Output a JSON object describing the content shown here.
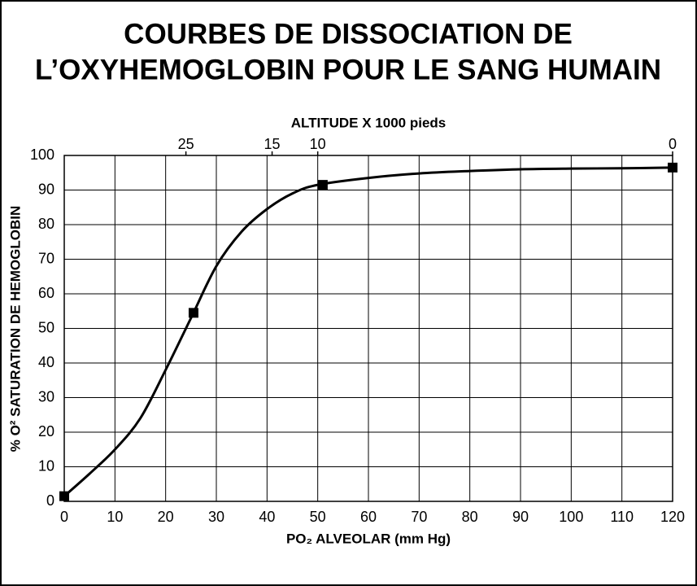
{
  "chart_data": {
    "type": "line",
    "title": [
      "COURBES DE DISSOCIATION DE",
      "L’OXYHEMOGLOBIN POUR LE SANG HUMAIN"
    ],
    "x_label": "PO₂ ALVEOLAR (mm Hg)",
    "y_label": "% O² SATURATION DE HEMOGLOBIN",
    "top_axis": {
      "label": "ALTITUDE X 1000 pieds",
      "ticks": [
        25,
        15,
        10,
        0
      ],
      "at_x": [
        24,
        41,
        50,
        120
      ]
    },
    "curve": {
      "x": [
        0,
        5,
        10,
        15,
        20,
        25,
        30,
        35,
        40,
        45,
        50,
        60,
        70,
        80,
        90,
        100,
        110,
        120
      ],
      "y": [
        1.5,
        8,
        15,
        24,
        38,
        53,
        68,
        78,
        84.5,
        89,
        91.5,
        93.5,
        94.8,
        95.5,
        96,
        96.2,
        96.3,
        96.5
      ],
      "color": "#000000"
    },
    "markers": {
      "x": [
        0,
        25.5,
        51,
        120
      ],
      "y": [
        1.5,
        54.5,
        91.5,
        96.5
      ],
      "color": "#000000"
    },
    "xlim": [
      0,
      120
    ],
    "xticks": [
      0,
      10,
      20,
      30,
      40,
      50,
      60,
      70,
      80,
      90,
      100,
      110,
      120
    ],
    "ylim": [
      0,
      100
    ],
    "yticks": [
      0,
      10,
      20,
      30,
      40,
      50,
      60,
      70,
      80,
      90,
      100
    ],
    "grid": true
  }
}
